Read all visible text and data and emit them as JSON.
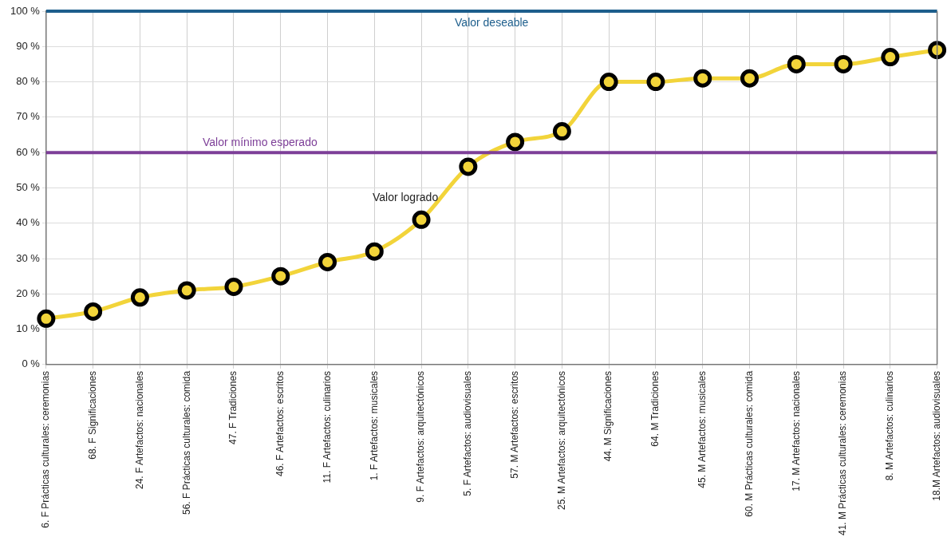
{
  "chart_data": {
    "type": "line",
    "categories": [
      "6. F Prácticas culturales: ceremonias",
      "68. F Significaciones",
      "24. F Artefactos: nacionales",
      "56. F Prácticas culturales: comida",
      "47. F Tradiciones",
      "46. F Artefactos: escritos",
      "11. F Artefactos: culinarios",
      "1. F Artefactos: musicales",
      "9. F Artefactos: arquitectónicos",
      "5. F Artefactos: audiovisuales",
      "57. M Artefactos: escritos",
      "25. M Artefactos: arquitectónicos",
      "44. M Significaciones",
      "64. M Tradiciones",
      "45. M Artefactos: musicales",
      "60. M Prácticas culturales: comida",
      "17. M Artefactos: nacionales",
      "41. M Prácticas culturales: ceremonias",
      "8. M Artefactos: culinarios",
      "18.M Artefactos: audiovisuales"
    ],
    "series": [
      {
        "name": "Valor logrado",
        "color": "#f2d43a",
        "values": [
          13,
          15,
          19,
          21,
          22,
          25,
          29,
          32,
          41,
          56,
          63,
          66,
          80,
          80,
          81,
          81,
          85,
          85,
          87,
          89
        ]
      }
    ],
    "ylim": [
      0,
      100
    ],
    "yticks": [
      {
        "value": 0,
        "label": "0 %"
      },
      {
        "value": 10,
        "label": "10 %"
      },
      {
        "value": 20,
        "label": "20 %"
      },
      {
        "value": 30,
        "label": "30 %"
      },
      {
        "value": 40,
        "label": "40 %"
      },
      {
        "value": 50,
        "label": "50 %"
      },
      {
        "value": 60,
        "label": "60 %"
      },
      {
        "value": 70,
        "label": "70 %"
      },
      {
        "value": 80,
        "label": "80 %"
      },
      {
        "value": 90,
        "label": "90 %"
      },
      {
        "value": 100,
        "label": "100 %"
      }
    ],
    "ref_lines": [
      {
        "axis": "y",
        "value": 100,
        "label": "Valor deseable",
        "color": "#1d5e8c"
      },
      {
        "axis": "y",
        "value": 60,
        "label": "Valor mínimo esperado",
        "color": "#7d3f98"
      }
    ],
    "grid": true,
    "legend": false,
    "marker": "circle",
    "line_style": "solid"
  }
}
